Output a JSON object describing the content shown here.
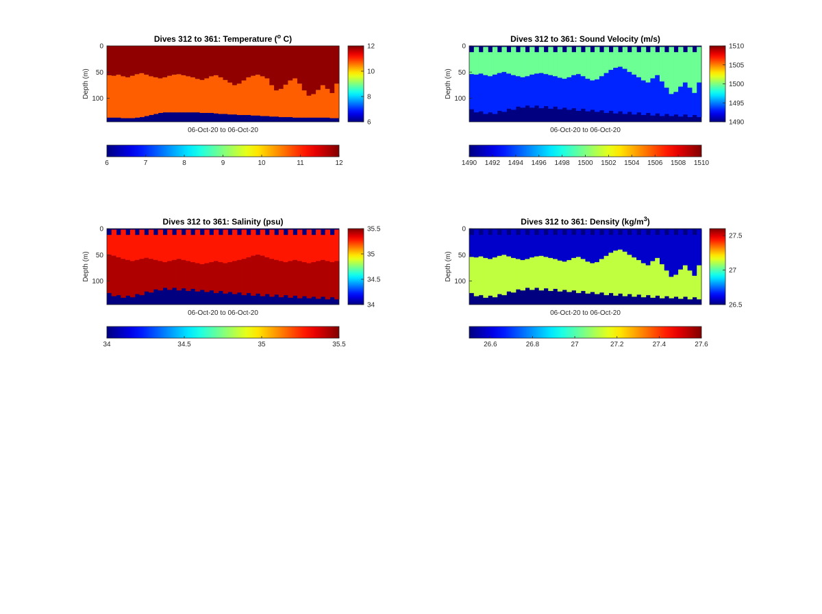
{
  "chart_data": [
    {
      "type": "heatmap",
      "title_parts": [
        "Dives 312 to 361: Temperature (",
        "o",
        " C)"
      ],
      "xlabel": "06-Oct-20 to 06-Oct-20",
      "ylabel": "Depth (m)",
      "ylim": [
        0,
        145
      ],
      "yticks": [
        "0",
        "50",
        "100"
      ],
      "clim": [
        6,
        12
      ],
      "side_colorbar_ticks": [
        "6",
        "8",
        "10",
        "12"
      ],
      "bottom_colorbar_ticks": [
        "6",
        "7",
        "8",
        "9",
        "10",
        "11",
        "12"
      ],
      "colormap": "jet",
      "dives": [
        312,
        361
      ],
      "layers": [
        {
          "name": "upper",
          "value": 11.9
        },
        {
          "name": "lower",
          "value": 10.7
        },
        {
          "name": "below_bottom",
          "value": 6
        }
      ],
      "interface_depth_m": [
        56,
        57,
        55,
        58,
        60,
        57,
        54,
        52,
        55,
        58,
        60,
        62,
        60,
        57,
        55,
        54,
        56,
        58,
        60,
        63,
        65,
        62,
        58,
        56,
        60,
        65,
        70,
        75,
        72,
        66,
        60,
        57,
        55,
        58,
        62,
        75,
        85,
        82,
        74,
        66,
        62,
        72,
        85,
        95,
        92,
        84,
        75,
        82,
        90,
        72
      ],
      "bottom_depth_m": [
        137,
        137,
        137,
        138,
        138,
        138,
        137,
        136,
        134,
        132,
        130,
        128,
        127,
        127,
        127,
        127,
        127,
        127,
        127,
        127,
        128,
        128,
        128,
        129,
        130,
        130,
        131,
        131,
        132,
        132,
        132,
        133,
        133,
        134,
        134,
        135,
        135,
        136,
        136,
        136,
        137,
        137,
        137,
        137,
        137,
        137,
        137,
        137,
        138,
        138
      ]
    },
    {
      "type": "heatmap",
      "title_parts": [
        "Dives 312 to 361: Sound Velocity (m/s)"
      ],
      "xlabel": "06-Oct-20 to 06-Oct-20",
      "ylabel": "Depth (m)",
      "ylim": [
        0,
        145
      ],
      "yticks": [
        "0",
        "50",
        "100"
      ],
      "clim": [
        1490,
        1510
      ],
      "side_colorbar_ticks": [
        "1490",
        "1495",
        "1500",
        "1505",
        "1510"
      ],
      "bottom_colorbar_ticks": [
        "1490",
        "1492",
        "1494",
        "1496",
        "1498",
        "1500",
        "1502",
        "1504",
        "1506",
        "1508",
        "1510"
      ],
      "colormap": "jet",
      "dives": [
        312,
        361
      ],
      "layers": [
        {
          "name": "surface_gap",
          "value": 1490
        },
        {
          "name": "upper",
          "value": 1499.6
        },
        {
          "name": "lower",
          "value": 1493.2
        },
        {
          "name": "below_bottom",
          "value": 1490
        }
      ],
      "interface_depth_m": [
        54,
        55,
        53,
        56,
        58,
        55,
        52,
        50,
        53,
        56,
        58,
        60,
        58,
        55,
        53,
        52,
        54,
        56,
        58,
        61,
        63,
        60,
        56,
        54,
        58,
        63,
        66,
        64,
        58,
        52,
        46,
        42,
        40,
        44,
        50,
        55,
        60,
        66,
        70,
        62,
        56,
        68,
        80,
        92,
        88,
        78,
        70,
        80,
        90,
        70
      ],
      "bottom_depth_m": [
        123,
        125,
        127,
        128,
        129,
        128,
        126,
        124,
        122,
        120,
        118,
        116,
        116,
        116,
        116,
        117,
        117,
        118,
        118,
        119,
        120,
        120,
        121,
        122,
        122,
        123,
        124,
        124,
        125,
        126,
        126,
        127,
        127,
        128,
        128,
        129,
        129,
        130,
        130,
        131,
        131,
        132,
        132,
        132,
        133,
        133,
        133,
        134,
        134,
        134
      ],
      "surface_gap_m": [
        2,
        12
      ]
    },
    {
      "type": "heatmap",
      "title_parts": [
        "Dives 312 to 361: Salinity (psu)"
      ],
      "xlabel": "06-Oct-20 to 06-Oct-20",
      "ylabel": "Depth (m)",
      "ylim": [
        0,
        145
      ],
      "yticks": [
        "0",
        "50",
        "100"
      ],
      "clim": [
        34,
        35.5
      ],
      "side_colorbar_ticks": [
        "34",
        "34.5",
        "35",
        "35.5"
      ],
      "bottom_colorbar_ticks": [
        "34",
        "34.5",
        "35",
        "35.5"
      ],
      "colormap": "jet",
      "dives": [
        312,
        361
      ],
      "layers": [
        {
          "name": "surface_gap",
          "value": 34
        },
        {
          "name": "upper",
          "value": 35.28
        },
        {
          "name": "lower",
          "value": 35.43
        },
        {
          "name": "below_bottom",
          "value": 34
        }
      ],
      "interface_depth_m": [
        50,
        52,
        55,
        58,
        60,
        62,
        60,
        58,
        56,
        58,
        60,
        62,
        64,
        62,
        60,
        58,
        60,
        62,
        64,
        66,
        68,
        66,
        64,
        62,
        64,
        66,
        64,
        62,
        60,
        58,
        55,
        52,
        50,
        52,
        55,
        58,
        60,
        62,
        64,
        62,
        60,
        62,
        64,
        66,
        64,
        62,
        60,
        62,
        64,
        62
      ],
      "bottom_depth_m": [
        125,
        127,
        129,
        130,
        130,
        129,
        127,
        125,
        122,
        120,
        118,
        116,
        115,
        115,
        115,
        116,
        116,
        117,
        117,
        118,
        119,
        119,
        120,
        121,
        121,
        122,
        123,
        123,
        124,
        125,
        125,
        126,
        126,
        127,
        127,
        128,
        128,
        129,
        129,
        130,
        130,
        131,
        131,
        131,
        132,
        132,
        132,
        133,
        133,
        133
      ],
      "surface_gap_m": [
        2,
        12
      ]
    },
    {
      "type": "heatmap",
      "title_parts": [
        "Dives 312 to 361: Density (kg/m",
        "3",
        ")"
      ],
      "xlabel": "06-Oct-20 to 06-Oct-20",
      "ylabel": "Depth (m)",
      "ylim": [
        0,
        145
      ],
      "yticks": [
        "0",
        "50",
        "100"
      ],
      "clim": [
        26.5,
        27.6
      ],
      "side_colorbar_ticks": [
        "26.5",
        "27",
        "27.5"
      ],
      "bottom_colorbar_ticks": [
        "26.6",
        "26.8",
        "27",
        "27.2",
        "27.4",
        "27.6"
      ],
      "colormap": "jet",
      "dives": [
        312,
        361
      ],
      "layers": [
        {
          "name": "surface_gap",
          "value": 26.5
        },
        {
          "name": "upper",
          "value": 26.58
        },
        {
          "name": "lower",
          "value": 27.12
        },
        {
          "name": "below_bottom",
          "value": 26.5
        }
      ],
      "interface_depth_m": [
        54,
        55,
        53,
        56,
        58,
        55,
        52,
        50,
        53,
        56,
        58,
        60,
        58,
        55,
        53,
        52,
        54,
        56,
        58,
        61,
        63,
        60,
        56,
        54,
        58,
        63,
        66,
        64,
        58,
        52,
        46,
        42,
        40,
        44,
        50,
        55,
        60,
        66,
        70,
        62,
        56,
        68,
        80,
        92,
        88,
        78,
        70,
        80,
        90,
        70
      ],
      "bottom_depth_m": [
        125,
        127,
        129,
        130,
        130,
        129,
        127,
        125,
        122,
        120,
        118,
        116,
        115,
        115,
        115,
        116,
        116,
        117,
        117,
        118,
        119,
        119,
        120,
        121,
        121,
        122,
        123,
        123,
        124,
        125,
        125,
        126,
        126,
        127,
        127,
        128,
        128,
        129,
        129,
        130,
        130,
        131,
        131,
        131,
        132,
        132,
        132,
        133,
        133,
        133
      ],
      "surface_gap_m": [
        2,
        12
      ]
    }
  ]
}
